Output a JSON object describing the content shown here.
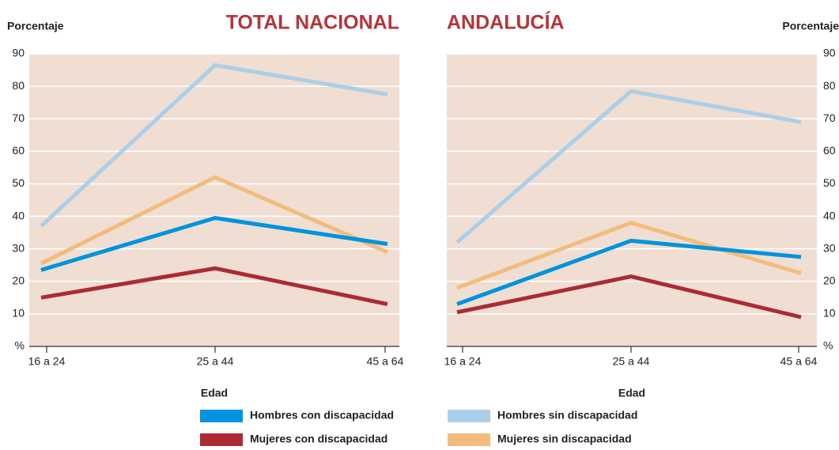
{
  "chart_data": [
    {
      "type": "line",
      "title": "TOTAL NACIONAL",
      "ylabel": "Porcentaje",
      "xlabel": "Edad",
      "y_axis_side": "left",
      "categories": [
        "16 a 24",
        "25 a 44",
        "45 a 64"
      ],
      "ylim": [
        0,
        90
      ],
      "yticks": [
        {
          "value": 0,
          "label": "%"
        },
        10,
        20,
        30,
        40,
        50,
        60,
        70,
        80,
        90
      ],
      "grid": true,
      "series": [
        {
          "name": "Hombres con discapacidad",
          "color": "#0093dd",
          "values": [
            23.5,
            39.5,
            31.5
          ]
        },
        {
          "name": "Mujeres con discapacidad",
          "color": "#ac2a34",
          "values": [
            15,
            24,
            13
          ]
        },
        {
          "name": "Hombres sin discapacidad",
          "color": "#abcfe8",
          "values": [
            37,
            86.5,
            77.5
          ]
        },
        {
          "name": "Mujeres sin discapacidad",
          "color": "#f2bc7c",
          "values": [
            25.5,
            52,
            29
          ]
        }
      ]
    },
    {
      "type": "line",
      "title": "ANDALUCÍA",
      "ylabel": "Porcentaje",
      "xlabel": "Edad",
      "y_axis_side": "right",
      "categories": [
        "16 a 24",
        "25 a 44",
        "45 a 64"
      ],
      "ylim": [
        0,
        90
      ],
      "yticks": [
        {
          "value": 0,
          "label": "%"
        },
        10,
        20,
        30,
        40,
        50,
        60,
        70,
        80,
        90
      ],
      "grid": true,
      "series": [
        {
          "name": "Hombres con discapacidad",
          "color": "#0093dd",
          "values": [
            13,
            32.5,
            27.5
          ]
        },
        {
          "name": "Mujeres con discapacidad",
          "color": "#ac2a34",
          "values": [
            10.5,
            21.5,
            9
          ]
        },
        {
          "name": "Hombres sin discapacidad",
          "color": "#abcfe8",
          "values": [
            32,
            78.5,
            69
          ]
        },
        {
          "name": "Mujeres sin discapacidad",
          "color": "#f2bc7c",
          "values": [
            18,
            38,
            22.5
          ]
        }
      ]
    }
  ]
}
